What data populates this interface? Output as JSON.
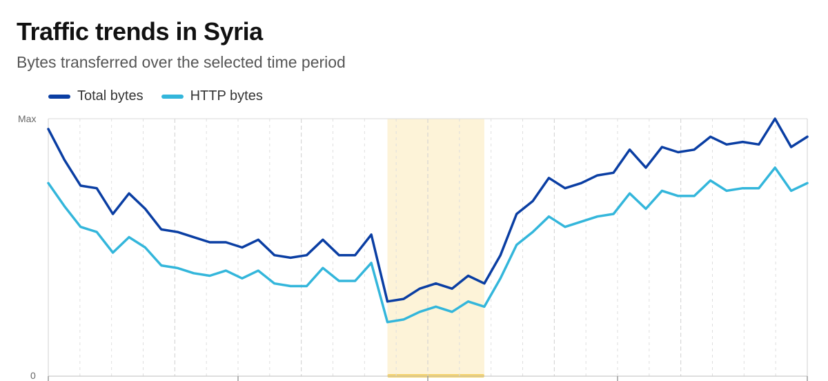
{
  "title": "Traffic trends in Syria",
  "subtitle": "Bytes transferred over the selected time period",
  "legend": [
    {
      "label": "Total bytes",
      "color": "#0a3ea3"
    },
    {
      "label": "HTTP bytes",
      "color": "#33b6db"
    }
  ],
  "highlight_color": "#fdf3d8",
  "highlight_bar_color": "#f5d36b",
  "chart_data": {
    "type": "line",
    "title": "Traffic trends in Syria",
    "subtitle": "Bytes transferred over the selected time period",
    "y_tick_labels": [
      "Max",
      "0"
    ],
    "ylim": [
      0,
      1
    ],
    "x": [
      0,
      1,
      2,
      3,
      4,
      5,
      6,
      7,
      8,
      9,
      10,
      11,
      12,
      13,
      14,
      15,
      16,
      17,
      18,
      19,
      20,
      21,
      22,
      23,
      24,
      25,
      26,
      27,
      28,
      29,
      30,
      31,
      32,
      33,
      34,
      35,
      36,
      37,
      38,
      39,
      40,
      41,
      42,
      43,
      44,
      45,
      46,
      47
    ],
    "highlight_range": [
      21,
      27
    ],
    "series": [
      {
        "name": "Total bytes",
        "color": "#0a3ea3",
        "values": [
          0.96,
          0.84,
          0.74,
          0.73,
          0.63,
          0.71,
          0.65,
          0.57,
          0.56,
          0.54,
          0.52,
          0.52,
          0.5,
          0.53,
          0.47,
          0.46,
          0.47,
          0.53,
          0.47,
          0.47,
          0.55,
          0.29,
          0.3,
          0.34,
          0.36,
          0.34,
          0.39,
          0.36,
          0.47,
          0.63,
          0.68,
          0.77,
          0.73,
          0.75,
          0.78,
          0.79,
          0.88,
          0.81,
          0.89,
          0.87,
          0.88,
          0.93,
          0.9,
          0.91,
          0.9,
          1.0,
          0.89,
          0.93
        ]
      },
      {
        "name": "HTTP bytes",
        "color": "#33b6db",
        "values": [
          0.75,
          0.66,
          0.58,
          0.56,
          0.48,
          0.54,
          0.5,
          0.43,
          0.42,
          0.4,
          0.39,
          0.41,
          0.38,
          0.41,
          0.36,
          0.35,
          0.35,
          0.42,
          0.37,
          0.37,
          0.44,
          0.21,
          0.22,
          0.25,
          0.27,
          0.25,
          0.29,
          0.27,
          0.38,
          0.51,
          0.56,
          0.62,
          0.58,
          0.6,
          0.62,
          0.63,
          0.71,
          0.65,
          0.72,
          0.7,
          0.7,
          0.76,
          0.72,
          0.73,
          0.73,
          0.81,
          0.72,
          0.75
        ]
      }
    ],
    "grid": true,
    "legend_position": "top-left"
  }
}
